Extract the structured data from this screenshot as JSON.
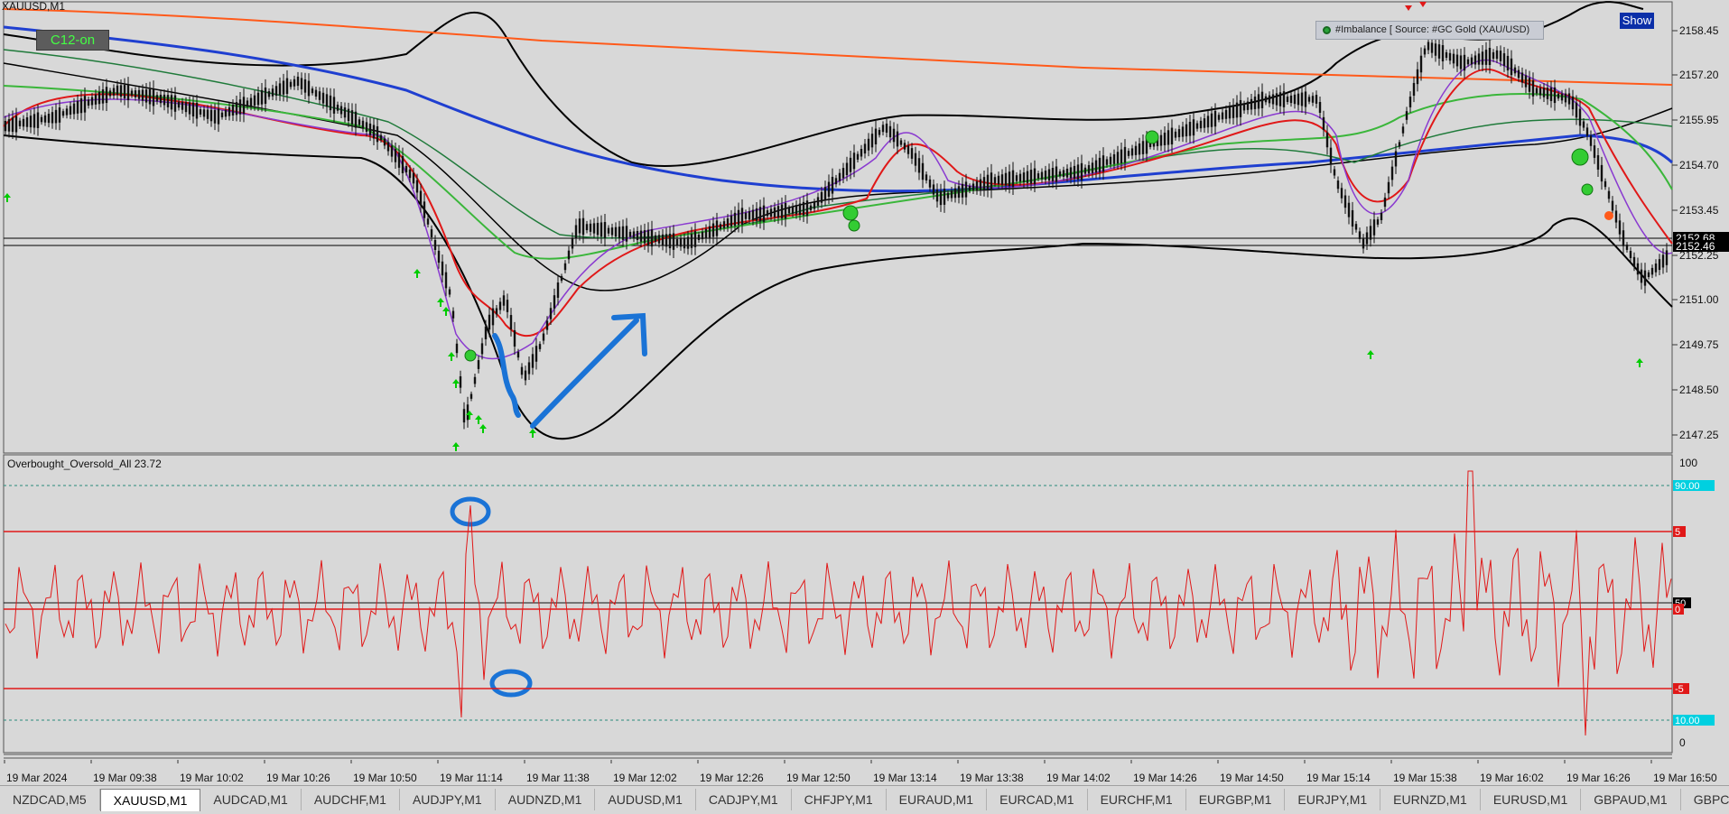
{
  "window": {
    "symbol_title": "XAUUSD,M1"
  },
  "indicators": {
    "c12_label": "C12-on",
    "show_label": "Show",
    "imbalance_label": "#Imbalance [ Source: #GC Gold (XAU/USD)"
  },
  "main_chart": {
    "price_ticks": [
      "2158.45",
      "2157.20",
      "2155.95",
      "2154.70",
      "2153.45",
      "2152.25",
      "2151.00",
      "2149.75",
      "2148.50",
      "2147.25"
    ],
    "price_current": [
      "2152.68",
      "2152.46"
    ],
    "colors": {
      "bollinger": "#000000",
      "ma_slow": "#1f3fd0",
      "ma_long": "#ff5a1a",
      "ma_fast": "#e01818",
      "ma_mid": "#3ab63a",
      "ma_purple": "#8a3ad0",
      "ma_dark_green": "#1f7a3a",
      "annotation": "#1a73d6",
      "up_arrow": "#00cc00"
    }
  },
  "oscillator": {
    "label": "Overbought_Oversold_All 23.72",
    "ticks": [
      "100",
      "0"
    ],
    "level_badges": [
      "90.00",
      "5",
      "50",
      "0",
      "-5",
      "10.00"
    ],
    "colors": {
      "line": "#e01818",
      "badge_cyan": "#00d0e0",
      "badge_red": "#e01818"
    }
  },
  "time_axis": [
    "19 Mar 2024",
    "19 Mar 09:38",
    "19 Mar 10:02",
    "19 Mar 10:26",
    "19 Mar 10:50",
    "19 Mar 11:14",
    "19 Mar 11:38",
    "19 Mar 12:02",
    "19 Mar 12:26",
    "19 Mar 12:50",
    "19 Mar 13:14",
    "19 Mar 13:38",
    "19 Mar 14:02",
    "19 Mar 14:26",
    "19 Mar 14:50",
    "19 Mar 15:14",
    "19 Mar 15:38",
    "19 Mar 16:02",
    "19 Mar 16:26",
    "19 Mar 16:50"
  ],
  "tabs": [
    {
      "label": "NZDCAD,M5",
      "active": false
    },
    {
      "label": "XAUUSD,M1",
      "active": true
    },
    {
      "label": "AUDCAD,M1",
      "active": false
    },
    {
      "label": "AUDCHF,M1",
      "active": false
    },
    {
      "label": "AUDJPY,M1",
      "active": false
    },
    {
      "label": "AUDNZD,M1",
      "active": false
    },
    {
      "label": "AUDUSD,M1",
      "active": false
    },
    {
      "label": "CADJPY,M1",
      "active": false
    },
    {
      "label": "CHFJPY,M1",
      "active": false
    },
    {
      "label": "EURAUD,M1",
      "active": false
    },
    {
      "label": "EURCAD,M1",
      "active": false
    },
    {
      "label": "EURCHF,M1",
      "active": false
    },
    {
      "label": "EURGBP,M1",
      "active": false
    },
    {
      "label": "EURJPY,M1",
      "active": false
    },
    {
      "label": "EURNZD,M1",
      "active": false
    },
    {
      "label": "EURUSD,M1",
      "active": false
    },
    {
      "label": "GBPAUD,M1",
      "active": false
    },
    {
      "label": "GBPC",
      "active": false
    }
  ]
}
